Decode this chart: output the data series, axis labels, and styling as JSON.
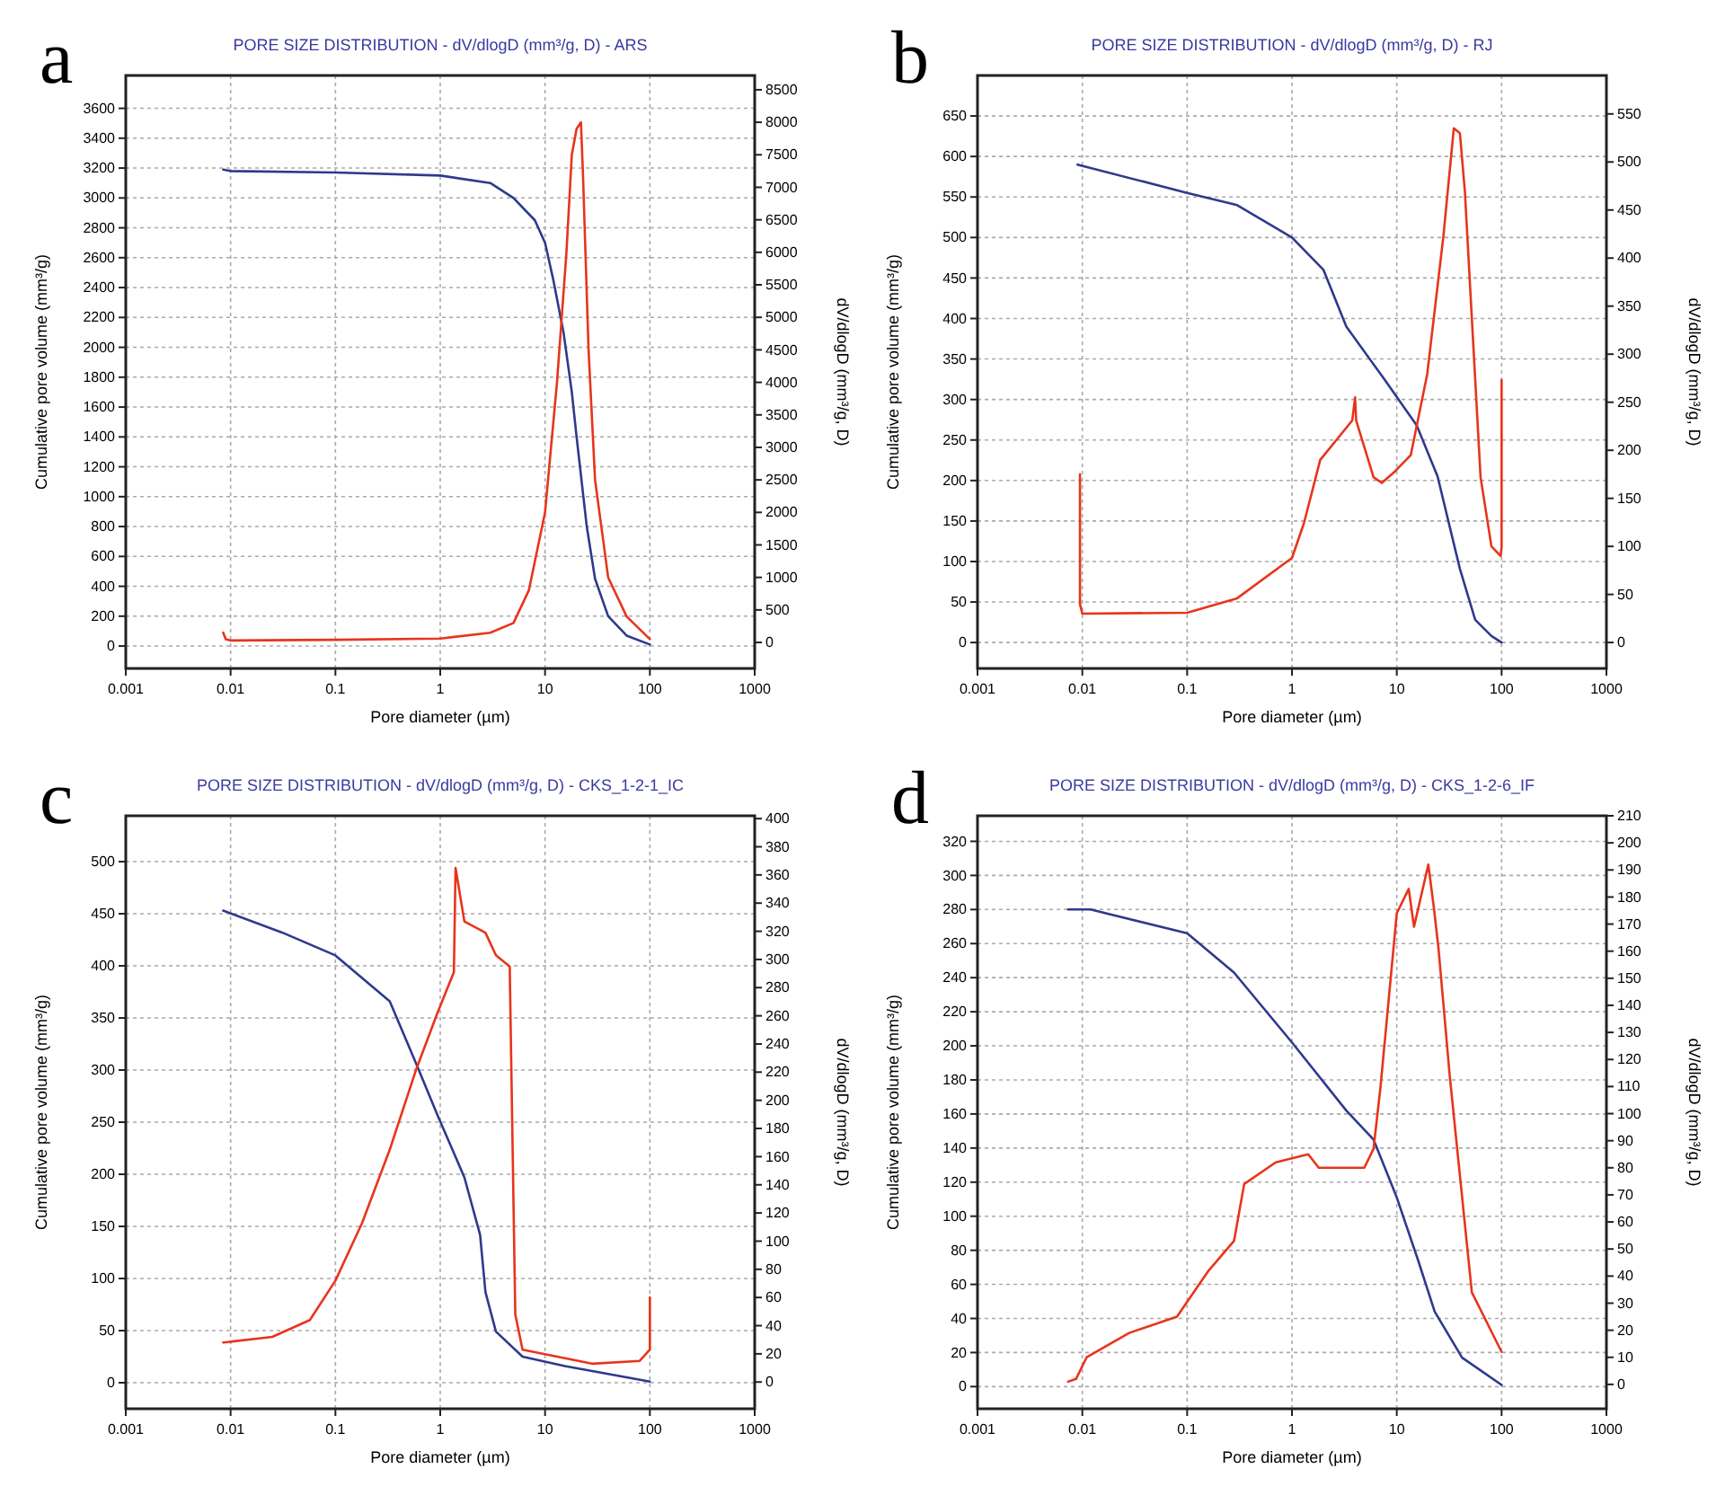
{
  "chart_data": [
    {
      "type": "line",
      "title": "PORE SIZE DISTRIBUTION - dV/dlogD (mm³/g, D) - ARS",
      "xlabel": "Pore diameter (µm)",
      "ylabel": "Cumulative pore volume (mm³/g)",
      "y2label": "dV/dlogD (mm³/g, D)",
      "annotations": [
        "a"
      ],
      "log": "x",
      "grid": true,
      "xlim": [
        0.001,
        1000
      ],
      "xticks": [
        0.001,
        0.01,
        0.1,
        1,
        10,
        100,
        1000
      ],
      "ylim": [
        -150,
        3820
      ],
      "yticks": [
        0,
        200,
        400,
        600,
        800,
        1000,
        1200,
        1400,
        1600,
        1800,
        2000,
        2200,
        2400,
        2600,
        2800,
        3000,
        3200,
        3400,
        3600
      ],
      "y2lim": [
        -400,
        8720
      ],
      "y2ticks": [
        0,
        500,
        1000,
        1500,
        2000,
        2500,
        3000,
        3500,
        4000,
        4500,
        5000,
        5500,
        6000,
        6500,
        7000,
        7500,
        8000,
        8500
      ],
      "series": [
        {
          "color": "#2e3a8c",
          "axis": "y",
          "x": [
            0.0085,
            0.01,
            0.1,
            1,
            3,
            5,
            8,
            10,
            12,
            15,
            18,
            20,
            25,
            30,
            40,
            60,
            100
          ],
          "values": [
            3190,
            3180,
            3170,
            3150,
            3100,
            3000,
            2850,
            2700,
            2450,
            2100,
            1700,
            1400,
            800,
            450,
            200,
            70,
            10
          ]
        },
        {
          "color": "#e8341c",
          "axis": "y2",
          "x": [
            0.0085,
            0.009,
            0.01,
            0.1,
            1,
            3,
            5,
            7,
            10,
            13,
            16,
            18,
            20,
            22,
            23,
            26,
            30,
            40,
            60,
            100
          ],
          "values": [
            150,
            50,
            30,
            40,
            60,
            150,
            300,
            800,
            2000,
            4000,
            6000,
            7500,
            7900,
            8000,
            7200,
            4500,
            2500,
            1000,
            400,
            50
          ]
        }
      ]
    },
    {
      "type": "line",
      "title": "PORE SIZE DISTRIBUTION - dV/dlogD (mm³/g, D) - RJ",
      "xlabel": "Pore diameter (µm)",
      "ylabel": "Cumulative pore volume (mm³/g)",
      "y2label": "dV/dlogD (mm³/g, D)",
      "annotations": [
        "b"
      ],
      "log": "x",
      "grid": true,
      "xlim": [
        0.001,
        1000
      ],
      "xticks": [
        0.001,
        0.01,
        0.1,
        1,
        10,
        100,
        1000
      ],
      "ylim": [
        -32,
        700
      ],
      "yticks": [
        0,
        50,
        100,
        150,
        200,
        250,
        300,
        350,
        400,
        450,
        500,
        550,
        600,
        650
      ],
      "y2lim": [
        -27,
        590
      ],
      "y2ticks": [
        0,
        50,
        100,
        150,
        200,
        250,
        300,
        350,
        400,
        450,
        500,
        550
      ],
      "series": [
        {
          "color": "#2e3a8c",
          "axis": "y",
          "x": [
            0.009,
            0.1,
            0.3,
            1,
            2,
            3.3,
            7.6,
            15.5,
            24.5,
            40,
            56,
            80,
            100
          ],
          "values": [
            590,
            555,
            540,
            500,
            460,
            390,
            325,
            268,
            205,
            91,
            28,
            8,
            0
          ]
        },
        {
          "color": "#e8341c",
          "axis": "y2",
          "x": [
            0.0095,
            0.0095,
            0.01,
            0.1,
            0.3,
            1,
            1.3,
            1.86,
            3.76,
            4,
            4.1,
            6,
            7.2,
            9.6,
            13.6,
            19.5,
            27.8,
            35,
            40,
            44.6,
            63,
            80,
            98,
            100,
            100
          ],
          "values": [
            175,
            40,
            30,
            31,
            46,
            88,
            124,
            190,
            231,
            255,
            231,
            172,
            166,
            178,
            195,
            279,
            422,
            535,
            530,
            470,
            172,
            100,
            90,
            100,
            273
          ]
        }
      ]
    },
    {
      "type": "line",
      "title": "PORE SIZE DISTRIBUTION - dV/dlogD (mm³/g, D) - CKS_1-2-1_IC",
      "xlabel": "Pore diameter (µm)",
      "ylabel": "Cumulative pore volume (mm³/g)",
      "y2label": "dV/dlogD (mm³/g, D)",
      "annotations": [
        "c"
      ],
      "log": "x",
      "grid": true,
      "xlim": [
        0.001,
        1000
      ],
      "xticks": [
        0.001,
        0.01,
        0.1,
        1,
        10,
        100,
        1000
      ],
      "ylim": [
        -25,
        544
      ],
      "yticks": [
        0,
        50,
        100,
        150,
        200,
        250,
        300,
        350,
        400,
        450,
        500
      ],
      "y2lim": [
        -19,
        402
      ],
      "y2ticks": [
        0,
        20,
        40,
        60,
        80,
        100,
        120,
        140,
        160,
        180,
        200,
        220,
        240,
        260,
        280,
        300,
        320,
        340,
        360,
        380,
        400
      ],
      "series": [
        {
          "color": "#2e3a8c",
          "axis": "y",
          "x": [
            0.0085,
            0.031,
            0.1,
            0.33,
            0.59,
            0.94,
            1.7,
            2.4,
            2.7,
            3.4,
            6.1,
            15.5,
            100
          ],
          "values": [
            453,
            432,
            410,
            366,
            306,
            257,
            197,
            142,
            87,
            49,
            25,
            16,
            1
          ]
        },
        {
          "color": "#e8341c",
          "axis": "y2",
          "x": [
            0.0085,
            0.025,
            0.057,
            0.1,
            0.18,
            0.33,
            0.59,
            0.94,
            1.35,
            1.4,
            1.7,
            2.7,
            3.4,
            4.6,
            5.2,
            6.1,
            28,
            80,
            100,
            100
          ],
          "values": [
            28,
            32,
            44,
            72,
            113,
            165,
            222,
            262,
            291,
            365,
            327,
            319,
            303,
            295,
            48,
            23,
            13,
            15,
            23,
            60
          ]
        }
      ]
    },
    {
      "type": "line",
      "title": "PORE SIZE DISTRIBUTION - dV/dlogD (mm³/g, D) - CKS_1-2-6_IF",
      "xlabel": "Pore diameter (µm)",
      "ylabel": "Cumulative pore volume (mm³/g)",
      "y2label": "dV/dlogD (mm³/g, D)",
      "annotations": [
        "d"
      ],
      "log": "x",
      "grid": true,
      "xlim": [
        0.001,
        1000
      ],
      "xticks": [
        0.001,
        0.01,
        0.1,
        1,
        10,
        100,
        1000
      ],
      "ylim": [
        -13,
        335
      ],
      "yticks": [
        0,
        20,
        40,
        60,
        80,
        100,
        120,
        140,
        160,
        180,
        200,
        220,
        240,
        260,
        280,
        300,
        320
      ],
      "y2lim": [
        -9,
        210
      ],
      "y2ticks": [
        0,
        10,
        20,
        30,
        40,
        50,
        60,
        70,
        80,
        90,
        100,
        110,
        120,
        130,
        140,
        150,
        160,
        170,
        180,
        190,
        200,
        210
      ],
      "series": [
        {
          "color": "#2e3a8c",
          "axis": "y",
          "x": [
            0.0073,
            0.012,
            0.1,
            0.28,
            1,
            3.3,
            6,
            10,
            16,
            23,
            42,
            100
          ],
          "values": [
            280,
            280,
            266,
            243,
            202,
            162,
            145,
            111,
            74,
            44,
            17,
            1
          ]
        },
        {
          "color": "#e8341c",
          "axis": "y2",
          "x": [
            0.0073,
            0.0087,
            0.011,
            0.028,
            0.08,
            0.16,
            0.28,
            0.35,
            0.7,
            1.43,
            1.8,
            4.9,
            6,
            7,
            10,
            13,
            14.6,
            20,
            22.6,
            25,
            32,
            52,
            100
          ],
          "values": [
            1,
            2,
            10,
            19,
            25,
            42,
            53,
            74,
            82,
            85,
            80,
            80,
            87,
            110,
            174,
            183,
            169,
            192,
            176,
            161,
            114,
            34,
            12
          ]
        }
      ]
    }
  ]
}
